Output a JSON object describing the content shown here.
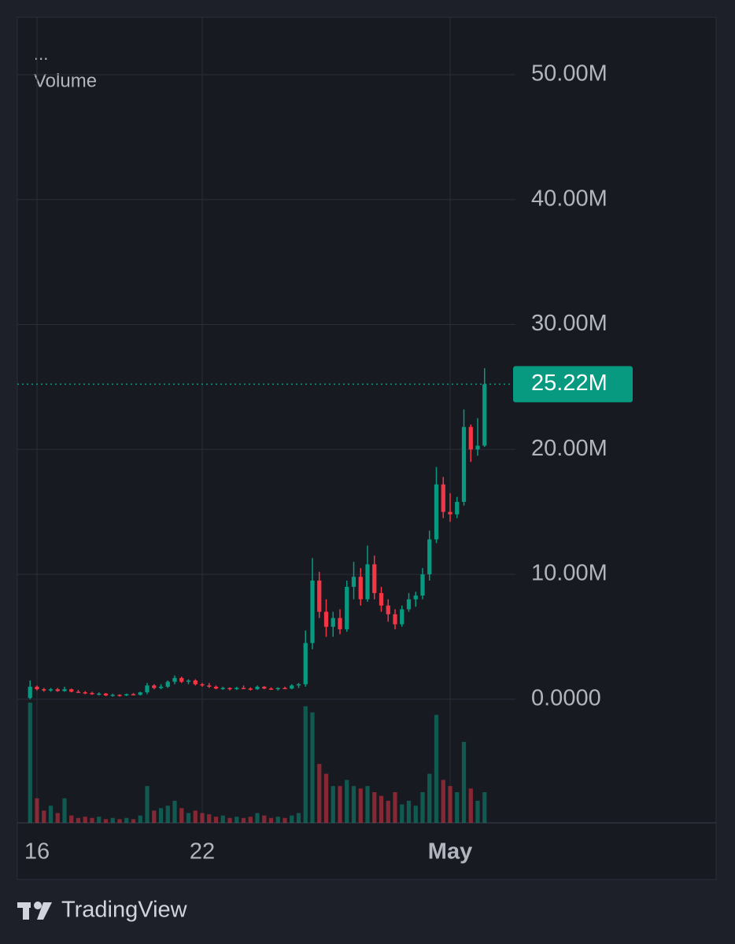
{
  "chart_data": {
    "type": "candlestick",
    "legend_menu": "...",
    "legend_title": "Volume",
    "brand": "TradingView",
    "up_color": "#089981",
    "down_color": "#f23645",
    "grid": true,
    "xlim": [
      15.286,
      33.371
    ],
    "xticks": [
      16,
      22,
      {
        "value": 31,
        "label": "May"
      }
    ],
    "ylim": [
      -9.9,
      54.6
    ],
    "yticks": [
      {
        "value": 0,
        "label": "0.0000"
      },
      {
        "value": 10,
        "label": "10.00M"
      },
      {
        "value": 20,
        "label": "20.00M"
      },
      {
        "value": 30,
        "label": "30.00M"
      },
      {
        "value": 40,
        "label": "40.00M"
      },
      {
        "value": 50,
        "label": "50.00M"
      }
    ],
    "volume_ylim": [
      0,
      100
    ],
    "price_line": {
      "value": 25.22,
      "label": "25.22M"
    },
    "x": [
      15.75,
      16,
      16.25,
      16.5,
      16.75,
      17,
      17.25,
      17.5,
      17.75,
      18,
      18.25,
      18.5,
      18.75,
      19,
      19.25,
      19.5,
      19.75,
      20,
      20.25,
      20.5,
      20.75,
      21,
      21.25,
      21.5,
      21.75,
      22,
      22.25,
      22.5,
      22.75,
      23,
      23.25,
      23.5,
      23.75,
      24,
      24.25,
      24.5,
      24.75,
      25,
      25.25,
      25.5,
      25.75,
      26,
      26.25,
      26.5,
      26.75,
      27,
      27.25,
      27.5,
      27.75,
      28,
      28.25,
      28.5,
      28.75,
      29,
      29.25,
      29.5,
      29.75,
      30,
      30.25,
      30.5,
      30.75,
      31,
      31.25,
      31.5,
      31.75,
      32,
      32.25
    ],
    "open": [
      0.1,
      1.0,
      0.8,
      0.7,
      0.8,
      0.65,
      0.8,
      0.6,
      0.55,
      0.5,
      0.4,
      0.45,
      0.3,
      0.35,
      0.3,
      0.4,
      0.35,
      0.55,
      1.1,
      0.9,
      1.0,
      1.4,
      1.7,
      1.4,
      1.5,
      1.2,
      1.1,
      1.0,
      0.85,
      0.9,
      0.8,
      0.9,
      0.85,
      0.8,
      1.0,
      0.85,
      0.8,
      0.9,
      0.85,
      1.1,
      1.2,
      4.5,
      9.5,
      7.0,
      5.8,
      6.5,
      5.6,
      9.0,
      9.8,
      8.0,
      10.8,
      8.5,
      7.5,
      6.8,
      6.0,
      7.2,
      8.0,
      8.3,
      10.0,
      12.8,
      17.2,
      15.0,
      14.8,
      15.8,
      21.8,
      20.0,
      20.3
    ],
    "high": [
      1.5,
      1.1,
      0.9,
      0.9,
      0.9,
      1.0,
      0.85,
      0.75,
      0.65,
      0.6,
      0.55,
      0.5,
      0.45,
      0.4,
      0.45,
      0.5,
      0.6,
      1.3,
      1.2,
      1.2,
      1.5,
      1.9,
      1.8,
      1.6,
      1.6,
      1.3,
      1.3,
      1.1,
      1.0,
      0.95,
      1.0,
      1.1,
      0.95,
      1.1,
      1.05,
      0.95,
      0.95,
      1.0,
      1.2,
      1.3,
      5.5,
      11.3,
      10.2,
      8.0,
      7.0,
      7.2,
      9.5,
      11.0,
      10.5,
      12.3,
      11.5,
      9.0,
      8.0,
      7.2,
      7.5,
      8.5,
      8.6,
      10.5,
      13.5,
      18.6,
      17.8,
      16.5,
      16.2,
      23.2,
      22.0,
      22.5,
      26.5
    ],
    "low": [
      0.0,
      0.7,
      0.6,
      0.6,
      0.6,
      0.6,
      0.55,
      0.5,
      0.4,
      0.35,
      0.3,
      0.25,
      0.2,
      0.2,
      0.25,
      0.3,
      0.3,
      0.4,
      0.8,
      0.8,
      0.9,
      1.2,
      1.3,
      1.2,
      1.1,
      1.0,
      0.9,
      0.8,
      0.75,
      0.7,
      0.75,
      0.8,
      0.7,
      0.75,
      0.8,
      0.75,
      0.7,
      0.8,
      0.8,
      0.9,
      1.0,
      4.0,
      6.5,
      5.0,
      5.0,
      5.2,
      5.4,
      8.0,
      7.5,
      7.8,
      8.0,
      7.0,
      6.2,
      5.6,
      5.8,
      7.0,
      7.4,
      8.0,
      9.5,
      12.5,
      14.5,
      14.2,
      14.5,
      15.5,
      19.0,
      19.5,
      20.2
    ],
    "close": [
      1.0,
      0.8,
      0.7,
      0.8,
      0.65,
      0.8,
      0.6,
      0.55,
      0.5,
      0.4,
      0.45,
      0.3,
      0.35,
      0.3,
      0.4,
      0.35,
      0.55,
      1.1,
      0.9,
      1.0,
      1.4,
      1.7,
      1.4,
      1.5,
      1.2,
      1.1,
      1.0,
      0.85,
      0.9,
      0.8,
      0.9,
      0.85,
      0.8,
      1.0,
      0.85,
      0.8,
      0.9,
      0.85,
      1.1,
      1.2,
      4.5,
      9.5,
      7.0,
      5.8,
      6.5,
      5.6,
      9.0,
      9.8,
      8.0,
      10.8,
      8.5,
      7.5,
      6.8,
      6.0,
      7.2,
      8.0,
      8.3,
      10.0,
      12.8,
      17.2,
      15.0,
      14.8,
      15.8,
      21.8,
      20.0,
      20.3,
      25.22
    ],
    "volume": [
      98,
      20,
      10,
      14,
      8,
      20,
      6,
      4,
      5,
      4,
      5,
      3,
      4,
      3,
      4,
      3,
      6,
      30,
      10,
      12,
      14,
      18,
      12,
      8,
      10,
      8,
      7,
      5,
      6,
      4,
      5,
      4,
      5,
      8,
      6,
      4,
      5,
      4,
      6,
      8,
      95,
      90,
      48,
      40,
      30,
      30,
      35,
      30,
      28,
      30,
      25,
      22,
      18,
      25,
      15,
      18,
      14,
      25,
      40,
      88,
      35,
      30,
      25,
      66,
      28,
      18,
      25
    ]
  }
}
